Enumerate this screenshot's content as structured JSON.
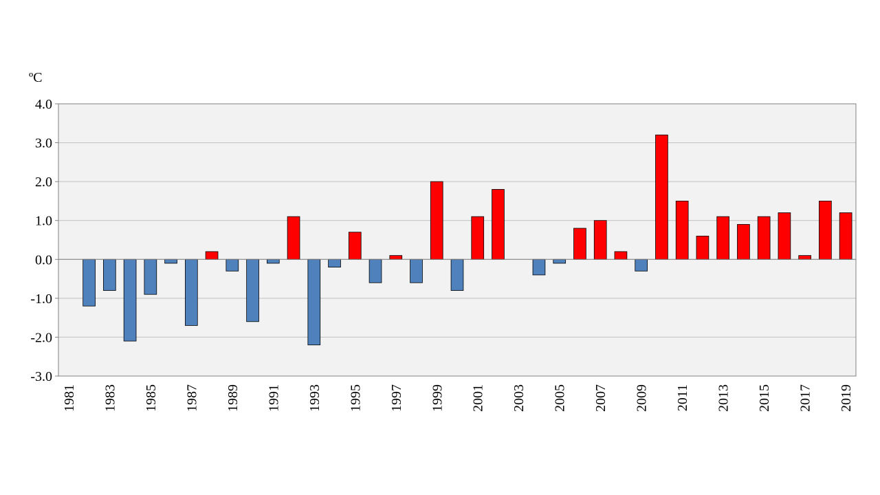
{
  "chart_data": {
    "type": "bar",
    "title": "",
    "xlabel": "",
    "ylabel": "",
    "unit_label": "ºC",
    "ylim": [
      -3.0,
      4.0
    ],
    "y_ticks": [
      "4.0",
      "3.0",
      "2.0",
      "1.0",
      "0.0",
      "-1.0",
      "-2.0",
      "-3.0"
    ],
    "y_tick_values": [
      4,
      3,
      2,
      1,
      0,
      -1,
      -2,
      -3
    ],
    "x_tick_labels": [
      "1981",
      "1983",
      "1985",
      "1987",
      "1989",
      "1991",
      "1993",
      "1995",
      "1997",
      "1999",
      "2001",
      "2003",
      "2005",
      "2007",
      "2009",
      "2011",
      "2013",
      "2015",
      "2017",
      "2019"
    ],
    "grid": true,
    "legend": "none",
    "colors": {
      "positive": "#ff0000",
      "negative": "#4f81bd",
      "plot_bg": "#f2f2f2",
      "grid": "#bfbfbf"
    },
    "categories": [
      "1981",
      "1982",
      "1983",
      "1984",
      "1985",
      "1986",
      "1987",
      "1988",
      "1989",
      "1990",
      "1991",
      "1992",
      "1993",
      "1994",
      "1995",
      "1996",
      "1997",
      "1998",
      "1999",
      "2000",
      "2001",
      "2002",
      "2003",
      "2004",
      "2005",
      "2006",
      "2007",
      "2008",
      "2009",
      "2010",
      "2011",
      "2012",
      "2013",
      "2014",
      "2015",
      "2016",
      "2017",
      "2018",
      "2019"
    ],
    "values": [
      0.0,
      -1.2,
      -0.8,
      -2.1,
      -0.9,
      -0.1,
      -1.7,
      0.2,
      -0.3,
      -1.6,
      -0.1,
      1.1,
      -2.2,
      -0.2,
      0.7,
      -0.6,
      0.1,
      -0.6,
      2.0,
      -0.8,
      1.1,
      1.8,
      0.0,
      -0.4,
      -0.1,
      0.8,
      1.0,
      0.2,
      -0.3,
      3.2,
      1.5,
      0.6,
      1.1,
      0.9,
      1.1,
      1.2,
      0.1,
      1.5,
      1.2
    ]
  }
}
